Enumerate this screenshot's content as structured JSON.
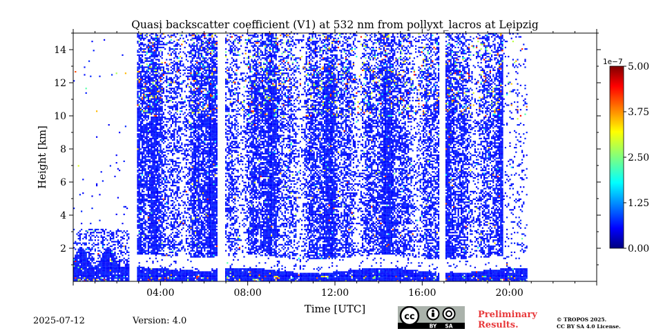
{
  "chart_data": {
    "type": "heatmap",
    "title": "Quasi backscatter coefficient (V1) at 532 nm from pollyxt_lacros at Leipzig",
    "xlabel": "Time [UTC]",
    "ylabel": "Height [km]",
    "x_range_hours": [
      0,
      24
    ],
    "ylim": [
      0,
      15
    ],
    "x_ticks": [
      "04:00",
      "08:00",
      "12:00",
      "16:00",
      "20:00"
    ],
    "y_ticks": [
      "2",
      "4",
      "6",
      "8",
      "10",
      "12",
      "14"
    ],
    "colorbar": {
      "exponent_label": "1e−7",
      "range": [
        0,
        5e-07
      ],
      "ticks": [
        "0.00",
        "1.25",
        "2.50",
        "3.75",
        "5.00"
      ],
      "colormap": "jet"
    },
    "data_gaps_hours": [
      [
        2.55,
        2.9
      ],
      [
        6.55,
        6.9
      ],
      [
        16.75,
        17.05
      ]
    ],
    "description_note": ""
  },
  "footer": {
    "date": "2025-07-12",
    "version": "Version: 4.0",
    "preliminary": "Preliminary Results.",
    "copyright_line1": "© TROPOS 2025.",
    "copyright_line2": "CC BY SA 4.0 License.",
    "cc_by": "BY",
    "cc_sa": "SA"
  },
  "colors": {
    "signal_blue": "#0a46e6",
    "accent_red": "#e8393b"
  }
}
